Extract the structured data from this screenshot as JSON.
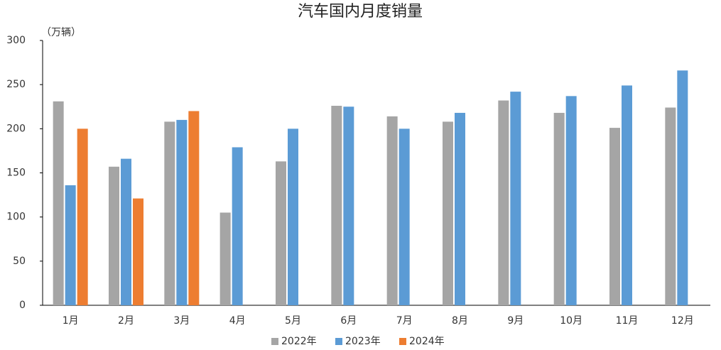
{
  "chart_data": {
    "type": "bar",
    "title": "汽车国内月度销量",
    "y_label": "（万辆）",
    "categories": [
      "1月",
      "2月",
      "3月",
      "4月",
      "5月",
      "6月",
      "7月",
      "8月",
      "9月",
      "10月",
      "11月",
      "12月"
    ],
    "series": [
      {
        "name": "2022年",
        "color": "#a5a5a5",
        "values": [
          231,
          157,
          208,
          105,
          163,
          226,
          214,
          208,
          232,
          218,
          201,
          224
        ]
      },
      {
        "name": "2023年",
        "color": "#5b9bd5",
        "values": [
          136,
          166,
          210,
          179,
          200,
          225,
          200,
          218,
          242,
          237,
          249,
          266
        ]
      },
      {
        "name": "2024年",
        "color": "#ed7d31",
        "values": [
          200,
          121,
          220,
          null,
          null,
          null,
          null,
          null,
          null,
          null,
          null,
          null
        ]
      }
    ],
    "ylim": [
      0,
      300
    ],
    "yticks": [
      0,
      50,
      100,
      150,
      200,
      250,
      300
    ],
    "grid": false,
    "legend": "bottom"
  }
}
